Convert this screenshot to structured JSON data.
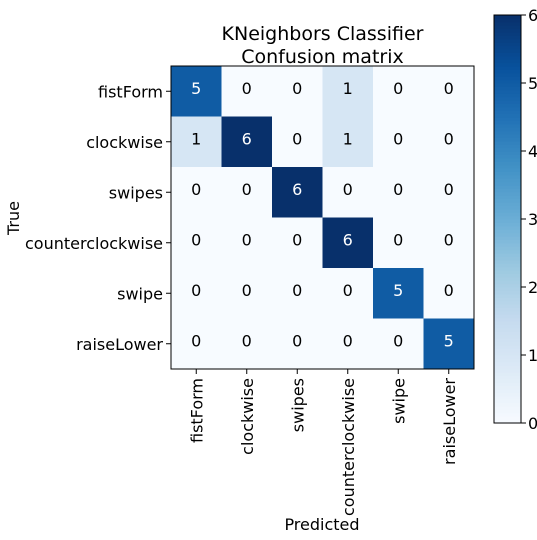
{
  "chart_data": {
    "type": "heatmap",
    "title": "KNeighbors Classifier\nConfusion matrix",
    "xlabel": "Predicted",
    "ylabel": "True",
    "x_categories": [
      "fistForm",
      "clockwise",
      "swipes",
      "counterclockwise",
      "swipe",
      "raiseLower"
    ],
    "y_categories": [
      "fistForm",
      "clockwise",
      "swipes",
      "counterclockwise",
      "swipe",
      "raiseLower"
    ],
    "values": [
      [
        5,
        0,
        0,
        1,
        0,
        0
      ],
      [
        1,
        6,
        0,
        1,
        0,
        0
      ],
      [
        0,
        0,
        6,
        0,
        0,
        0
      ],
      [
        0,
        0,
        0,
        6,
        0,
        0
      ],
      [
        0,
        0,
        0,
        0,
        5,
        0
      ],
      [
        0,
        0,
        0,
        0,
        0,
        5
      ]
    ],
    "colorbar": {
      "min": 0,
      "max": 6,
      "ticks": [
        0,
        1,
        2,
        3,
        4,
        5,
        6
      ],
      "colormap": "Blues"
    },
    "grid": false
  }
}
